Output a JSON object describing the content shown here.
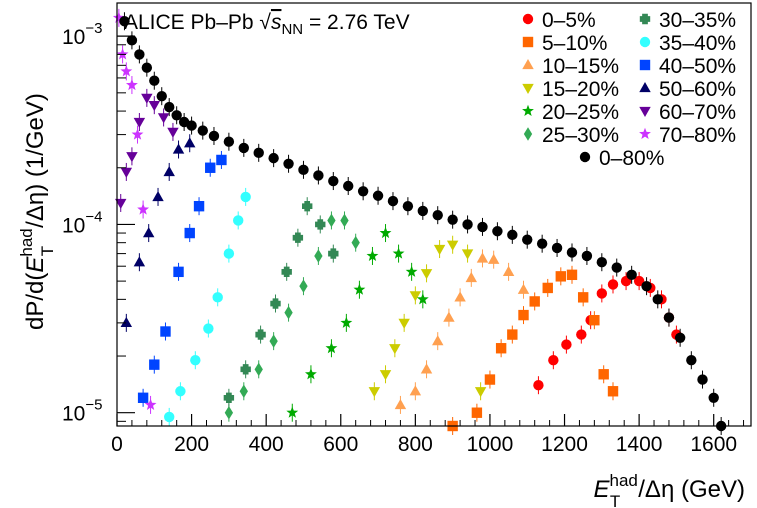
{
  "chart_data": {
    "type": "scatter",
    "title": "",
    "annotation": {
      "prefix": "ALICE Pb–Pb ",
      "sqrt": "√",
      "s": "s",
      "sub": "NN",
      "suffix": " = 2.76 TeV"
    },
    "xlabel": {
      "main": "E",
      "sup": "had",
      "sub": "T",
      "rest": "/Δη (GeV)"
    },
    "ylabel": {
      "pre": "dP/d(",
      "main": "E",
      "sup": "had",
      "sub": "T",
      "rest": "/Δη)  (1/GeV)"
    },
    "xlim": [
      0,
      1700
    ],
    "ylim": [
      8.5e-06,
      0.0015
    ],
    "y_scale": "log",
    "x_ticks": [
      {
        "value": 0,
        "label": "0"
      },
      {
        "value": 200,
        "label": "200"
      },
      {
        "value": 400,
        "label": "400"
      },
      {
        "value": 600,
        "label": "600"
      },
      {
        "value": 800,
        "label": "800"
      },
      {
        "value": 1000,
        "label": "1000"
      },
      {
        "value": 1200,
        "label": "1200"
      },
      {
        "value": 1400,
        "label": "1400"
      },
      {
        "value": 1600,
        "label": "1600"
      }
    ],
    "y_ticks": [
      {
        "value": 1e-05,
        "base": "10",
        "exp": "−5"
      },
      {
        "value": 0.0001,
        "base": "10",
        "exp": "−4"
      },
      {
        "value": 0.001,
        "base": "10",
        "exp": "−3"
      }
    ],
    "grid": false,
    "legend_position": "top-right",
    "series": [
      {
        "name": "0–5%",
        "marker": "circle",
        "color": "#ff0000",
        "x": [
          1130,
          1170,
          1205,
          1245,
          1270,
          1300,
          1330,
          1365,
          1400,
          1430,
          1460,
          1480,
          1500
        ],
        "y": [
          1.4e-05,
          1.9e-05,
          2.3e-05,
          2.6e-05,
          3.1e-05,
          4.3e-05,
          4.8e-05,
          5e-05,
          5e-05,
          4.6e-05,
          4e-05,
          3.2e-05,
          2.6e-05
        ]
      },
      {
        "name": "5–10%",
        "marker": "square",
        "color": "#ff6600",
        "x": [
          900,
          965,
          1000,
          1030,
          1060,
          1090,
          1120,
          1155,
          1190,
          1220,
          1250,
          1280,
          1305,
          1330
        ],
        "y": [
          8.5e-06,
          1e-05,
          1.5e-05,
          2.2e-05,
          2.6e-05,
          3.3e-05,
          3.9e-05,
          4.6e-05,
          5.3e-05,
          5.4e-05,
          4.1e-05,
          3.1e-05,
          1.6e-05,
          1.3e-05
        ]
      },
      {
        "name": "10–15%",
        "marker": "triangle-up",
        "color": "#ffa050",
        "x": [
          760,
          800,
          830,
          860,
          890,
          920,
          950,
          980,
          1010,
          1050,
          1090
        ],
        "y": [
          1.1e-05,
          1.3e-05,
          1.7e-05,
          2.4e-05,
          3.2e-05,
          4.1e-05,
          5.2e-05,
          6.6e-05,
          6.5e-05,
          5.6e-05,
          4.5e-05
        ]
      },
      {
        "name": "15–20%",
        "marker": "triangle-down",
        "color": "#cccc00",
        "x": [
          690,
          720,
          745,
          770,
          800,
          830,
          865,
          900,
          940,
          975
        ],
        "y": [
          1.3e-05,
          1.6e-05,
          2.2e-05,
          3e-05,
          4.2e-05,
          5.5e-05,
          7.4e-05,
          7.8e-05,
          7e-05,
          1.3e-05
        ]
      },
      {
        "name": "20–25%",
        "marker": "star",
        "color": "#00aa00",
        "x": [
          470,
          520,
          575,
          615,
          650,
          685,
          720,
          755,
          790,
          820
        ],
        "y": [
          1e-05,
          1.6e-05,
          2.2e-05,
          3e-05,
          4.5e-05,
          6.8e-05,
          9e-05,
          7e-05,
          5.6e-05,
          4e-05
        ]
      },
      {
        "name": "25–30%",
        "marker": "diamond",
        "color": "#33aa55",
        "x": [
          300,
          340,
          380,
          420,
          460,
          500,
          540,
          575,
          610,
          640
        ],
        "y": [
          1e-05,
          1.3e-05,
          1.7e-05,
          2.4e-05,
          3.4e-05,
          4.7e-05,
          6.8e-05,
          0.000105,
          0.000105,
          8e-05
        ]
      },
      {
        "name": "30–35%",
        "marker": "cross",
        "color": "#338855",
        "x": [
          300,
          345,
          385,
          425,
          455,
          485,
          510,
          545,
          580
        ],
        "y": [
          1.2e-05,
          1.7e-05,
          2.6e-05,
          3.8e-05,
          5.6e-05,
          8.5e-05,
          0.000125,
          0.0001,
          7e-05
        ]
      },
      {
        "name": "35–40%",
        "marker": "circle",
        "color": "#33ffff",
        "x": [
          140,
          170,
          210,
          245,
          270,
          300,
          325,
          345
        ],
        "y": [
          9.5e-06,
          1.3e-05,
          1.9e-05,
          2.8e-05,
          4.1e-05,
          7e-05,
          0.000105,
          0.00014
        ]
      },
      {
        "name": "40–50%",
        "marker": "square",
        "color": "#0044ff",
        "x": [
          70,
          100,
          130,
          165,
          195,
          220,
          250,
          280
        ],
        "y": [
          1.2e-05,
          1.8e-05,
          2.7e-05,
          5.6e-05,
          9e-05,
          0.000125,
          0.0002,
          0.00022
        ]
      },
      {
        "name": "50–60%",
        "marker": "triangle-up",
        "color": "#000066",
        "x": [
          25,
          60,
          85,
          110,
          140,
          165,
          195
        ],
        "y": [
          3e-05,
          6.3e-05,
          9e-05,
          0.00014,
          0.00019,
          0.00025,
          0.00027
        ]
      },
      {
        "name": "60–70%",
        "marker": "triangle-down",
        "color": "#660099",
        "x": [
          10,
          25,
          40,
          60,
          80,
          100,
          125,
          150
        ],
        "y": [
          0.00013,
          0.00019,
          0.00023,
          0.00035,
          0.00047,
          0.00043,
          0.00037,
          0.00031
        ]
      },
      {
        "name": "70–80%",
        "marker": "star",
        "color": "#cc33ff",
        "x": [
          5,
          15,
          25,
          40,
          55,
          70,
          90
        ],
        "y": [
          0.00125,
          0.0008,
          0.00065,
          0.00055,
          0.0003,
          0.00012,
          1.1e-05
        ]
      },
      {
        "name": "0–80%",
        "marker": "circle",
        "color": "#000000",
        "x": [
          20,
          40,
          60,
          80,
          100,
          120,
          140,
          160,
          180,
          200,
          230,
          260,
          300,
          340,
          380,
          420,
          460,
          500,
          540,
          580,
          620,
          660,
          700,
          740,
          780,
          820,
          860,
          900,
          940,
          980,
          1020,
          1060,
          1100,
          1140,
          1180,
          1220,
          1260,
          1300,
          1340,
          1380,
          1420,
          1450,
          1480,
          1510,
          1540,
          1570,
          1600,
          1620
        ],
        "y": [
          0.0012,
          0.00095,
          0.0008,
          0.00068,
          0.00058,
          0.00048,
          0.00042,
          0.00038,
          0.00035,
          0.000335,
          0.000315,
          0.000295,
          0.000275,
          0.000255,
          0.00024,
          0.000225,
          0.00021,
          0.000195,
          0.000182,
          0.00017,
          0.00016,
          0.00015,
          0.000142,
          0.000133,
          0.000125,
          0.000118,
          0.000112,
          0.000106,
          0.0001,
          9.7e-05,
          9.2e-05,
          8.8e-05,
          8.3e-05,
          7.9e-05,
          7.5e-05,
          7.1e-05,
          6.8e-05,
          6.3e-05,
          5.9e-05,
          5.4e-05,
          4.7e-05,
          4e-05,
          3.2e-05,
          2.5e-05,
          1.9e-05,
          1.5e-05,
          1.2e-05,
          8.5e-06
        ]
      }
    ]
  }
}
